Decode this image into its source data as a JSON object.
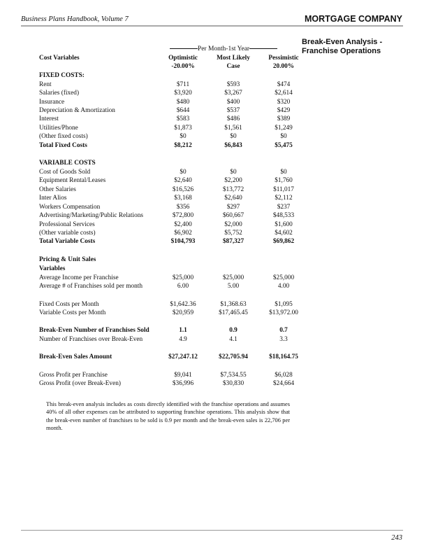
{
  "header": {
    "book": "Business Plans Handbook, Volume 7",
    "company": "MORTGAGE COMPANY"
  },
  "side_title": "Break-Even Analysis - Franchise Operations",
  "per_month": "Per Month-1st Year",
  "columns": {
    "label": "Cost Variables",
    "heads": [
      [
        "Optimistic",
        "-20.00%"
      ],
      [
        "Most Likely",
        "Case"
      ],
      [
        "Pessimistic",
        "20.00%"
      ]
    ]
  },
  "sections": [
    {
      "title": "FIXED COSTS:",
      "rows": [
        {
          "label": "Rent",
          "values": [
            "$711",
            "$593",
            "$474"
          ]
        },
        {
          "label": "Salaries (fixed)",
          "values": [
            "$3,920",
            "$3,267",
            "$2,614"
          ]
        },
        {
          "label": "Insurance",
          "values": [
            "$480",
            "$400",
            "$320"
          ]
        },
        {
          "label": "Depreciation & Amortization",
          "values": [
            "$644",
            "$537",
            "$429"
          ]
        },
        {
          "label": "Interest",
          "values": [
            "$583",
            "$486",
            "$389"
          ]
        },
        {
          "label": "Utilities/Phone",
          "values": [
            "$1,873",
            "$1,561",
            "$1,249"
          ]
        },
        {
          "label": "(Other fixed costs)",
          "values": [
            "$0",
            "$0",
            "$0"
          ]
        },
        {
          "label": "Total Fixed Costs",
          "values": [
            "$8,212",
            "$6,843",
            "$5,475"
          ],
          "bold": true
        }
      ]
    },
    {
      "title": "VARIABLE COSTS",
      "rows": [
        {
          "label": "Cost of Goods Sold",
          "values": [
            "$0",
            "$0",
            "$0"
          ]
        },
        {
          "label": "Equipment Rental/Leases",
          "values": [
            "$2,640",
            "$2,200",
            "$1,760"
          ]
        },
        {
          "label": "Other Salaries",
          "values": [
            "$16,526",
            "$13,772",
            "$11,017"
          ]
        },
        {
          "label": "Inter Alios",
          "values": [
            "$3,168",
            "$2,640",
            "$2,112"
          ]
        },
        {
          "label": "Workers Compensation",
          "values": [
            "$356",
            "$297",
            "$237"
          ]
        },
        {
          "label": "Advertising/Marketing/Public Relations",
          "values": [
            "$72,800",
            "$60,667",
            "$48,533"
          ]
        },
        {
          "label": "Professional Services",
          "values": [
            "$2,400",
            "$2,000",
            "$1,600"
          ]
        },
        {
          "label": "(Other variable costs)",
          "values": [
            "$6,902",
            "$5,752",
            "$4,602"
          ]
        },
        {
          "label": "Total Variable Costs",
          "values": [
            "$104,793",
            "$87,327",
            "$69,862"
          ],
          "bold": true
        }
      ]
    },
    {
      "title": "Pricing & Unit Sales",
      "title2": "Variables",
      "rows": [
        {
          "label": "Average Income per Franchise",
          "values": [
            "$25,000",
            "$25,000",
            "$25,000"
          ]
        },
        {
          "label": "Average # of Franchises sold per month",
          "values": [
            "6.00",
            "5.00",
            "4.00"
          ]
        }
      ]
    },
    {
      "rows": [
        {
          "label": "Fixed Costs per Month",
          "values": [
            "$1,642.36",
            "$1,368.63",
            "$1,095"
          ]
        },
        {
          "label": "Variable Costs per Month",
          "values": [
            "$20,959",
            "$17,465.45",
            "$13,972.00"
          ]
        }
      ]
    },
    {
      "rows": [
        {
          "label": "Break-Even Number of Franchises Sold",
          "values": [
            "1.1",
            "0.9",
            "0.7"
          ],
          "bold": true
        },
        {
          "label": "Number of Franchises over Break-Even",
          "values": [
            "4.9",
            "4.1",
            "3.3"
          ]
        }
      ]
    },
    {
      "rows": [
        {
          "label": "Break-Even Sales Amount",
          "values": [
            "$27,247.12",
            "$22,705.94",
            "$18,164.75"
          ],
          "bold": true
        }
      ]
    },
    {
      "rows": [
        {
          "label": "Gross Profit per Franchise",
          "values": [
            "$9,041",
            "$7,534.55",
            "$6,028"
          ]
        },
        {
          "label": "Gross Profit (over Break-Even)",
          "values": [
            "$36,996",
            "$30,830",
            "$24,664"
          ]
        }
      ]
    }
  ],
  "note": "This break-even analysis includes as costs directly identified with the franchise operations and assumes 40% of all other expenses can be attributed to supporting franchise operations. This analysis show that the break-even number of franchises to be sold is 0.9 per month and the break-even sales is 22,706 per month.",
  "page_number": "243"
}
